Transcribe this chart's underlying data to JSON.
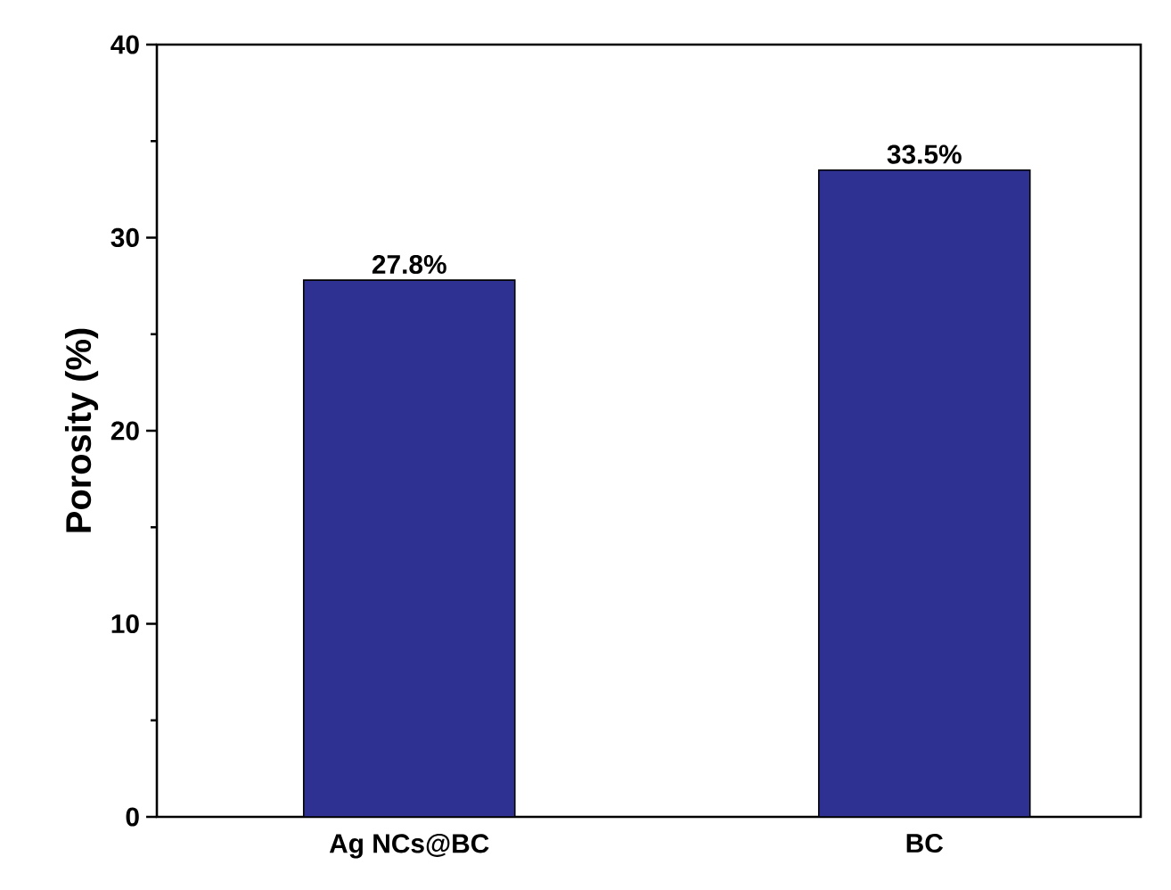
{
  "chart_data": {
    "type": "bar",
    "ylabel": "Porosity (%)",
    "categories": [
      "Ag NCs@BC",
      "BC"
    ],
    "values": [
      27.8,
      33.5
    ],
    "color": "#2e3192",
    "ylim": [
      0,
      40
    ],
    "yticks": [
      0,
      10,
      20,
      30,
      40
    ],
    "data_labels": true,
    "value_labels": [
      "27.8%",
      "33.5%"
    ],
    "grid": false
  }
}
